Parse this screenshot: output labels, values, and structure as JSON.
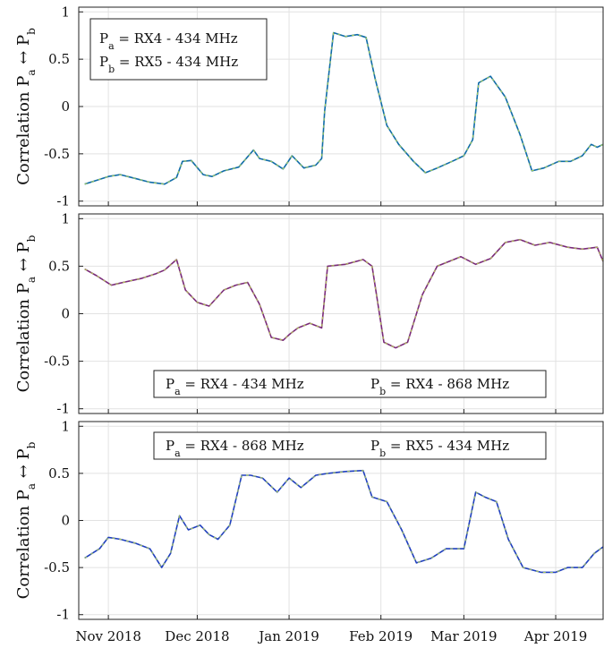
{
  "chart_data": [
    {
      "type": "line",
      "ylabel": "Correlation P_a ↔ P_b",
      "ylim": [
        -1.05,
        1.05
      ],
      "yticks": [
        -1,
        -0.5,
        0,
        0.5,
        1
      ],
      "ytick_labels": [
        "-1",
        "-0.5",
        "0",
        "0.5",
        "1"
      ],
      "grid": true,
      "legend": {
        "layout": "stacked",
        "position": "top-left",
        "entries": [
          "P_a = RX4 - 434 MHz",
          "P_b = RX5 - 434 MHz"
        ]
      },
      "series": [
        {
          "color": "#0f6ba8",
          "x": [
            "2018-10-24",
            "2018-10-28",
            "2018-11-01",
            "2018-11-05",
            "2018-11-10",
            "2018-11-15",
            "2018-11-20",
            "2018-11-24",
            "2018-11-26",
            "2018-11-29",
            "2018-12-03",
            "2018-12-06",
            "2018-12-10",
            "2018-12-15",
            "2018-12-20",
            "2018-12-22",
            "2018-12-26",
            "2018-12-30",
            "2019-01-02",
            "2019-01-06",
            "2019-01-10",
            "2019-01-12",
            "2019-01-13",
            "2019-01-16",
            "2019-01-20",
            "2019-01-24",
            "2019-01-27",
            "2019-01-30",
            "2019-02-03",
            "2019-02-07",
            "2019-02-12",
            "2019-02-16",
            "2019-02-20",
            "2019-02-25",
            "2019-03-01",
            "2019-03-04",
            "2019-03-06",
            "2019-03-10",
            "2019-03-15",
            "2019-03-20",
            "2019-03-24",
            "2019-03-28",
            "2019-04-02",
            "2019-04-06",
            "2019-04-10",
            "2019-04-13",
            "2019-04-15",
            "2019-04-17"
          ],
          "values": [
            -0.82,
            -0.78,
            -0.74,
            -0.72,
            -0.76,
            -0.8,
            -0.82,
            -0.75,
            -0.58,
            -0.57,
            -0.72,
            -0.74,
            -0.68,
            -0.64,
            -0.46,
            -0.55,
            -0.58,
            -0.66,
            -0.52,
            -0.65,
            -0.62,
            -0.55,
            -0.05,
            0.78,
            0.74,
            0.76,
            0.73,
            0.3,
            -0.2,
            -0.4,
            -0.58,
            -0.7,
            -0.65,
            -0.58,
            -0.52,
            -0.35,
            0.25,
            0.32,
            0.1,
            -0.3,
            -0.68,
            -0.65,
            -0.58,
            -0.58,
            -0.52,
            -0.4,
            -0.43,
            -0.4
          ]
        }
      ]
    },
    {
      "type": "line",
      "ylabel": "Correlation P_a ↔ P_b",
      "ylim": [
        -1.05,
        1.05
      ],
      "yticks": [
        -1,
        -0.5,
        0,
        0.5,
        1
      ],
      "ytick_labels": [
        "-1",
        "-0.5",
        "0",
        "0.5",
        "1"
      ],
      "grid": true,
      "legend": {
        "layout": "inline",
        "position": "bottom-center",
        "entries": [
          "P_a = RX4 - 434 MHz",
          "P_b = RX4 - 868 MHz"
        ]
      },
      "series": [
        {
          "color": "#7a2a7a",
          "x": [
            "2018-10-24",
            "2018-10-28",
            "2018-11-02",
            "2018-11-06",
            "2018-11-12",
            "2018-11-17",
            "2018-11-20",
            "2018-11-24",
            "2018-11-27",
            "2018-12-01",
            "2018-12-05",
            "2018-12-10",
            "2018-12-14",
            "2018-12-18",
            "2018-12-22",
            "2018-12-26",
            "2018-12-30",
            "2019-01-01",
            "2019-01-04",
            "2019-01-08",
            "2019-01-12",
            "2019-01-14",
            "2019-01-20",
            "2019-01-26",
            "2019-01-29",
            "2019-02-02",
            "2019-02-06",
            "2019-02-10",
            "2019-02-15",
            "2019-02-20",
            "2019-02-28",
            "2019-03-05",
            "2019-03-10",
            "2019-03-15",
            "2019-03-20",
            "2019-03-25",
            "2019-03-30",
            "2019-04-05",
            "2019-04-10",
            "2019-04-15",
            "2019-04-17"
          ],
          "values": [
            0.47,
            0.4,
            0.3,
            0.33,
            0.37,
            0.42,
            0.46,
            0.57,
            0.25,
            0.12,
            0.08,
            0.25,
            0.3,
            0.33,
            0.1,
            -0.25,
            -0.28,
            -0.22,
            -0.15,
            -0.1,
            -0.15,
            0.5,
            0.52,
            0.57,
            0.5,
            -0.3,
            -0.36,
            -0.3,
            0.2,
            0.5,
            0.6,
            0.52,
            0.58,
            0.75,
            0.78,
            0.72,
            0.75,
            0.7,
            0.68,
            0.7,
            0.55
          ]
        }
      ]
    },
    {
      "type": "line",
      "ylabel": "Correlation P_a ↔ P_b",
      "ylim": [
        -1.05,
        1.05
      ],
      "yticks": [
        -1,
        -0.5,
        0,
        0.5,
        1
      ],
      "ytick_labels": [
        "-1",
        "-0.5",
        "0",
        "0.5",
        "1"
      ],
      "grid": true,
      "xticks": [
        "2018-11-01",
        "2018-12-01",
        "2019-01-01",
        "2019-02-01",
        "2019-03-01",
        "2019-04-01"
      ],
      "xtick_labels": [
        "Nov 2018",
        "Dec 2018",
        "Jan 2019",
        "Feb 2019",
        "Mar 2019",
        "Apr 2019"
      ],
      "legend": {
        "layout": "inline",
        "position": "top-center",
        "entries": [
          "P_a = RX4 - 868 MHz",
          "P_b = RX5 - 434 MHz"
        ]
      },
      "series": [
        {
          "color": "#1f3fbf",
          "x": [
            "2018-10-24",
            "2018-10-29",
            "2018-11-01",
            "2018-11-05",
            "2018-11-10",
            "2018-11-15",
            "2018-11-19",
            "2018-11-22",
            "2018-11-25",
            "2018-11-28",
            "2018-12-02",
            "2018-12-05",
            "2018-12-08",
            "2018-12-12",
            "2018-12-16",
            "2018-12-19",
            "2018-12-23",
            "2018-12-28",
            "2019-01-01",
            "2019-01-05",
            "2019-01-10",
            "2019-01-14",
            "2019-01-20",
            "2019-01-26",
            "2019-01-29",
            "2019-02-03",
            "2019-02-08",
            "2019-02-13",
            "2019-02-18",
            "2019-02-23",
            "2019-03-01",
            "2019-03-05",
            "2019-03-08",
            "2019-03-12",
            "2019-03-16",
            "2019-03-21",
            "2019-03-27",
            "2019-04-01",
            "2019-04-05",
            "2019-04-10",
            "2019-04-14",
            "2019-04-17"
          ],
          "values": [
            -0.4,
            -0.3,
            -0.18,
            -0.2,
            -0.24,
            -0.3,
            -0.5,
            -0.35,
            0.05,
            -0.1,
            -0.05,
            -0.15,
            -0.2,
            -0.05,
            0.48,
            0.48,
            0.45,
            0.3,
            0.45,
            0.35,
            0.48,
            0.5,
            0.52,
            0.53,
            0.25,
            0.2,
            -0.1,
            -0.45,
            -0.4,
            -0.3,
            -0.3,
            0.3,
            0.25,
            0.2,
            -0.2,
            -0.5,
            -0.55,
            -0.55,
            -0.5,
            -0.5,
            -0.35,
            -0.28
          ]
        }
      ]
    }
  ]
}
